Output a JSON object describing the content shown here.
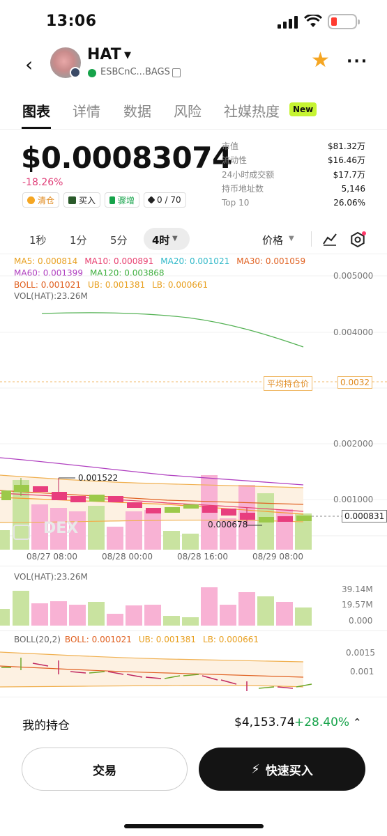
{
  "status": {
    "time": "13:06"
  },
  "header": {
    "token": "HAT",
    "address": "ESBCnC...BAGS"
  },
  "tabs": [
    {
      "label": "图表",
      "active": true
    },
    {
      "label": "详情"
    },
    {
      "label": "数据"
    },
    {
      "label": "风险"
    },
    {
      "label": "社媒热度"
    }
  ],
  "new_badge": "New",
  "price": {
    "value": "$0.00083074",
    "change": "-18.26%"
  },
  "chips": [
    "清仓",
    "买入",
    "骤增",
    "0 / 70"
  ],
  "stats": [
    {
      "k": "市值",
      "v": "$81.32万"
    },
    {
      "k": "流动性",
      "v": "$16.46万"
    },
    {
      "k": "24小时成交额",
      "v": "$17.7万"
    },
    {
      "k": "持币地址数",
      "v": "5,146"
    },
    {
      "k": "Top 10",
      "v": "26.06%"
    }
  ],
  "timeframes": [
    "1秒",
    "1分",
    "5分",
    "4时"
  ],
  "price_select": "价格",
  "ma": {
    "ma5": "MA5: 0.000814",
    "ma10": "MA10: 0.000891",
    "ma20": "MA20: 0.001021",
    "ma30": "MA30: 0.001059",
    "ma60": "MA60: 0.001399",
    "ma120": "MA120: 0.003868",
    "boll": "BOLL: 0.001021",
    "ub": "UB: 0.001381",
    "lb": "LB: 0.000661",
    "vol": "VOL(HAT):23.26M"
  },
  "colors": {
    "up": "#b7d97a",
    "down": "#f59ac6",
    "ma5": "#e8a020",
    "ma10": "#e84070",
    "ma20": "#2fb8c8",
    "ma30": "#e06020",
    "ma60": "#b040c0",
    "ma120": "#40b040"
  },
  "chart": {
    "y_labels": [
      "0.005000",
      "0.004000",
      "0.002000",
      "0.001000"
    ],
    "avg_label": "平均持仓价",
    "avg_value": "0.0032",
    "last_value": "0.000831",
    "high_mark": "0.001522",
    "low_mark": "0.000678",
    "watermark": "DEX",
    "dates": [
      "08/27 08:00",
      "08/28 00:00",
      "08/28 16:00",
      "08/29 08:00"
    ]
  },
  "volume": {
    "label": "VOL(HAT):23.26M",
    "axis": [
      "39.14M",
      "19.57M",
      "0.000"
    ]
  },
  "boll_panel": {
    "label": "BOLL(20,2)",
    "boll": "BOLL: 0.001021",
    "ub": "UB: 0.001381",
    "lb": "LB: 0.000661",
    "axis": [
      "0.0015",
      "0.001"
    ]
  },
  "holding": {
    "label": "我的持仓",
    "value": "$4,153.74",
    "pct": "+28.40%"
  },
  "buttons": {
    "trade": "交易",
    "quick_buy": "快速买入"
  }
}
